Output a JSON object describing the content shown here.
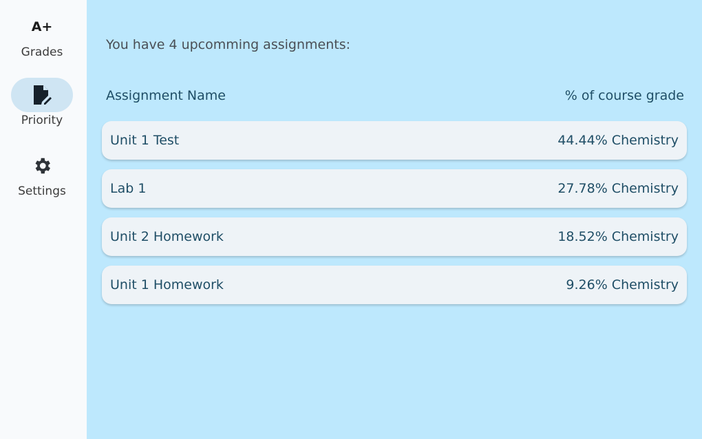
{
  "sidebar": {
    "items": [
      {
        "label": "Grades",
        "icon": "grade-a-plus-icon",
        "glyph": "A+"
      },
      {
        "label": "Priority",
        "icon": "edit-document-icon",
        "active": true
      },
      {
        "label": "Settings",
        "icon": "gear-icon"
      }
    ]
  },
  "main": {
    "intro": "You have 4 upcomming assignments:",
    "columns": [
      "Assignment Name",
      "% of course grade"
    ],
    "rows": [
      {
        "name": "Unit 1 Test",
        "value": "44.44% Chemistry"
      },
      {
        "name": "Lab 1",
        "value": "27.78% Chemistry"
      },
      {
        "name": "Unit 2 Homework",
        "value": "18.52% Chemistry"
      },
      {
        "name": "Unit 1 Homework",
        "value": "9.26% Chemistry"
      }
    ]
  },
  "colors": {
    "background": "#bde8fd",
    "sidebar": "#f8fafc",
    "row": "#eef3f7",
    "text": "#1f4e66",
    "active_pill": "#cfe5f3"
  }
}
